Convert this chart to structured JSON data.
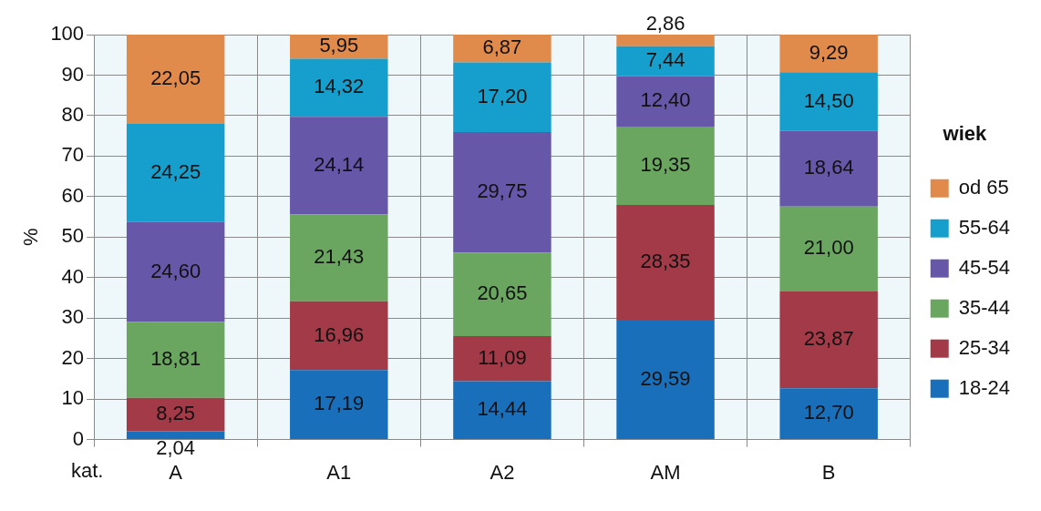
{
  "chart_data": {
    "type": "bar",
    "stacked": true,
    "ylabel": "%",
    "xlabel": "kat.",
    "legend_title": "wiek",
    "legend": "right",
    "grid": true,
    "categories": [
      "A",
      "A1",
      "A2",
      "AM",
      "B"
    ],
    "ylim": [
      0,
      100
    ],
    "yticks": [
      0,
      10,
      20,
      30,
      40,
      50,
      60,
      70,
      80,
      90,
      100
    ],
    "series": [
      {
        "name": "18-24",
        "color": "#1a6fba",
        "values": [
          2.04,
          17.19,
          14.44,
          29.59,
          12.7
        ],
        "value_labels": [
          "2,04",
          "17,19",
          "14,44",
          "29,59",
          "12,70"
        ]
      },
      {
        "name": "25-34",
        "color": "#a33a48",
        "values": [
          8.25,
          16.96,
          11.09,
          28.35,
          23.87
        ],
        "value_labels": [
          "8,25",
          "16,96",
          "11,09",
          "28,35",
          "23,87"
        ]
      },
      {
        "name": "35-44",
        "color": "#6aa660",
        "values": [
          18.81,
          21.43,
          20.65,
          19.35,
          21.0
        ],
        "value_labels": [
          "18,81",
          "21,43",
          "20,65",
          "19,35",
          "21,00"
        ]
      },
      {
        "name": "45-54",
        "color": "#6757a8",
        "values": [
          24.6,
          24.14,
          29.75,
          12.4,
          18.64
        ],
        "value_labels": [
          "24,60",
          "24,14",
          "29,75",
          "12,40",
          "18,64"
        ]
      },
      {
        "name": "55-64",
        "color": "#169fcc",
        "values": [
          24.25,
          14.32,
          17.2,
          7.44,
          14.5
        ],
        "value_labels": [
          "24,25",
          "14,32",
          "17,20",
          "7,44",
          "14,50"
        ]
      },
      {
        "name": "od 65",
        "color": "#e08a4c",
        "values": [
          22.05,
          5.95,
          6.87,
          2.86,
          9.29
        ],
        "value_labels": [
          "22,05",
          "5,95",
          "6,87",
          "2,86",
          "9,29"
        ]
      }
    ]
  }
}
